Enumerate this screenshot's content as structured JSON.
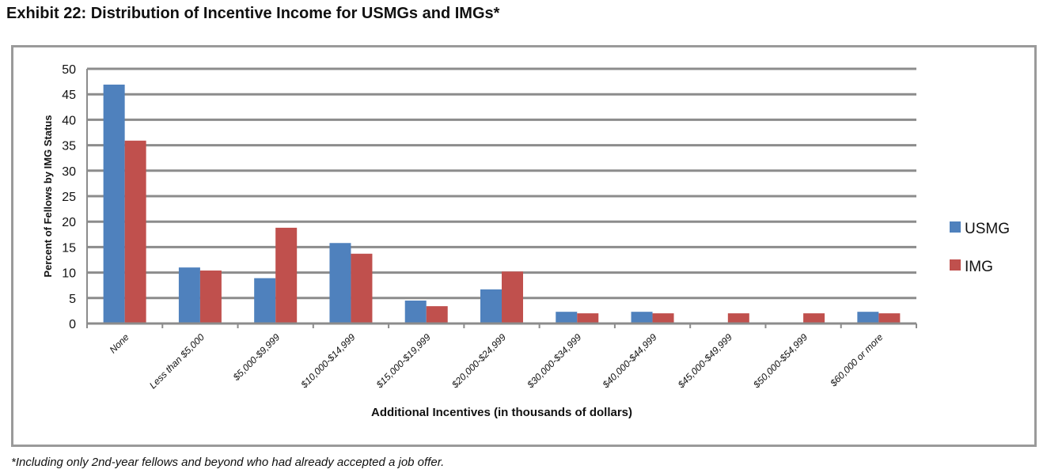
{
  "title": "Exhibit 22: Distribution of Incentive Income for USMGs and IMGs*",
  "footnote": "*Including only 2nd-year fellows and beyond who had already accepted a job offer.",
  "chart_data": {
    "type": "bar",
    "title": "Exhibit 22: Distribution of Incentive Income for USMGs and IMGs*",
    "xlabel": "Additional Incentives (in thousands of dollars)",
    "ylabel": "Percent of Fellows by IMG Status",
    "ylim": [
      0,
      50
    ],
    "yticks": [
      0,
      5,
      10,
      15,
      20,
      25,
      30,
      35,
      40,
      45,
      50
    ],
    "grid": true,
    "legend_position": "right",
    "categories": [
      "None",
      "Less than $5,000",
      "$5,000-$9,999",
      "$10,000-$14,999",
      "$15,000-$19,999",
      "$20,000-$24,999",
      "$30,000-$34,999",
      "$40,000-$44,999",
      "$45,000-$49,999",
      "$50,000-$54,999",
      "$60,000 or more"
    ],
    "series": [
      {
        "name": "USMG",
        "color": "#4f81bd",
        "values": [
          46.9,
          11.0,
          8.9,
          15.8,
          4.5,
          6.7,
          2.3,
          2.3,
          0,
          0,
          2.3
        ]
      },
      {
        "name": "IMG",
        "color": "#c0504d",
        "values": [
          35.9,
          10.4,
          18.8,
          13.7,
          3.4,
          10.2,
          2.0,
          2.0,
          2.0,
          2.0,
          2.0
        ]
      }
    ]
  }
}
